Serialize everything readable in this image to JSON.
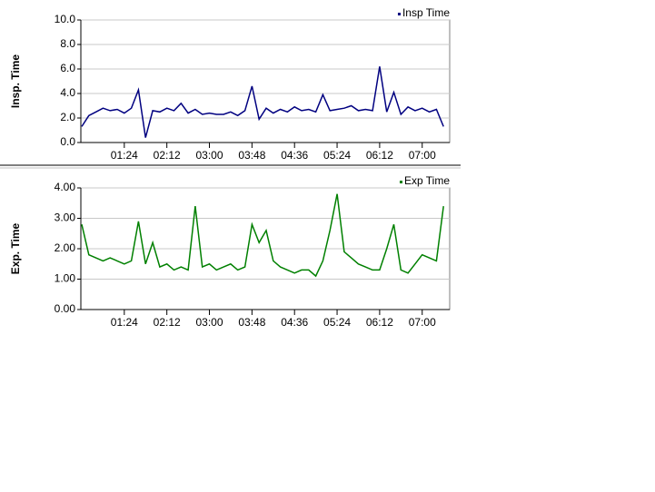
{
  "chart_data": [
    {
      "type": "line",
      "y_label": "Insp. Time",
      "x": [
        36,
        44,
        52,
        60,
        68,
        76,
        84,
        92,
        100,
        108,
        116,
        124,
        132,
        140,
        148,
        156,
        164,
        172,
        180,
        188,
        196,
        204,
        212,
        220,
        228,
        236,
        244,
        252,
        260,
        268,
        276,
        284,
        292,
        300,
        308,
        316,
        324,
        332,
        340,
        348,
        356,
        364,
        372,
        380,
        388,
        396,
        404,
        412,
        420,
        428,
        436,
        444
      ],
      "series": [
        {
          "name": "Insp Time",
          "color": "#000080",
          "values": [
            1.3,
            2.2,
            2.5,
            2.8,
            2.6,
            2.7,
            2.4,
            2.8,
            4.3,
            0.4,
            2.6,
            2.5,
            2.8,
            2.6,
            3.2,
            2.4,
            2.7,
            2.3,
            2.4,
            2.3,
            2.3,
            2.5,
            2.2,
            2.6,
            4.6,
            1.9,
            2.8,
            2.4,
            2.7,
            2.5,
            2.9,
            2.6,
            2.7,
            2.5,
            3.9,
            2.6,
            2.7,
            2.8,
            3.0,
            2.6,
            2.7,
            2.6,
            6.2,
            2.5,
            4.1,
            2.3,
            2.9,
            2.6,
            2.8,
            2.5,
            2.7,
            1.3
          ]
        }
      ],
      "xlim": [
        35,
        451
      ],
      "xticks": [
        {
          "value": 84,
          "label": "01:24"
        },
        {
          "value": 132,
          "label": "02:12"
        },
        {
          "value": 180,
          "label": "03:00"
        },
        {
          "value": 228,
          "label": "03:48"
        },
        {
          "value": 276,
          "label": "04:36"
        },
        {
          "value": 324,
          "label": "05:24"
        },
        {
          "value": 372,
          "label": "06:12"
        },
        {
          "value": 420,
          "label": "07:00"
        }
      ],
      "ylim": [
        0,
        10
      ],
      "yticks": [
        {
          "value": 10,
          "label": "10.0"
        },
        {
          "value": 8,
          "label": "8.0"
        },
        {
          "value": 6,
          "label": "6.0"
        },
        {
          "value": 4,
          "label": "4.0"
        },
        {
          "value": 2,
          "label": "2.0"
        },
        {
          "value": 0,
          "label": "0.0"
        }
      ],
      "grid": true,
      "legend": "top-right"
    },
    {
      "type": "line",
      "y_label": "Exp. Time",
      "x": [
        36,
        44,
        52,
        60,
        68,
        76,
        84,
        92,
        100,
        108,
        116,
        124,
        132,
        140,
        148,
        156,
        164,
        172,
        180,
        188,
        196,
        204,
        212,
        220,
        228,
        236,
        244,
        252,
        260,
        268,
        276,
        284,
        292,
        300,
        308,
        316,
        324,
        332,
        340,
        348,
        356,
        364,
        372,
        380,
        388,
        396,
        404,
        412,
        420,
        428,
        436,
        444
      ],
      "series": [
        {
          "name": "Exp Time",
          "color": "#008000",
          "values": [
            2.8,
            1.8,
            1.7,
            1.6,
            1.7,
            1.6,
            1.5,
            1.6,
            2.9,
            1.5,
            2.2,
            1.4,
            1.5,
            1.3,
            1.4,
            1.3,
            3.4,
            1.4,
            1.5,
            1.3,
            1.4,
            1.5,
            1.3,
            1.4,
            2.8,
            2.2,
            2.6,
            1.6,
            1.4,
            1.3,
            1.2,
            1.3,
            1.3,
            1.1,
            1.6,
            2.6,
            3.8,
            1.9,
            1.7,
            1.5,
            1.4,
            1.3,
            1.3,
            2.0,
            2.8,
            1.3,
            1.2,
            1.5,
            1.8,
            1.7,
            1.6,
            3.4
          ]
        }
      ],
      "xlim": [
        35,
        451
      ],
      "xticks": [
        {
          "value": 84,
          "label": "01:24"
        },
        {
          "value": 132,
          "label": "02:12"
        },
        {
          "value": 180,
          "label": "03:00"
        },
        {
          "value": 228,
          "label": "03:48"
        },
        {
          "value": 276,
          "label": "04:36"
        },
        {
          "value": 324,
          "label": "05:24"
        },
        {
          "value": 372,
          "label": "06:12"
        },
        {
          "value": 420,
          "label": "07:00"
        }
      ],
      "ylim": [
        0,
        4
      ],
      "yticks": [
        {
          "value": 4,
          "label": "4.00"
        },
        {
          "value": 3,
          "label": "3.00"
        },
        {
          "value": 2,
          "label": "2.00"
        },
        {
          "value": 1,
          "label": "1.00"
        },
        {
          "value": 0,
          "label": "0.00"
        }
      ],
      "grid": true,
      "legend": "top-right"
    }
  ]
}
